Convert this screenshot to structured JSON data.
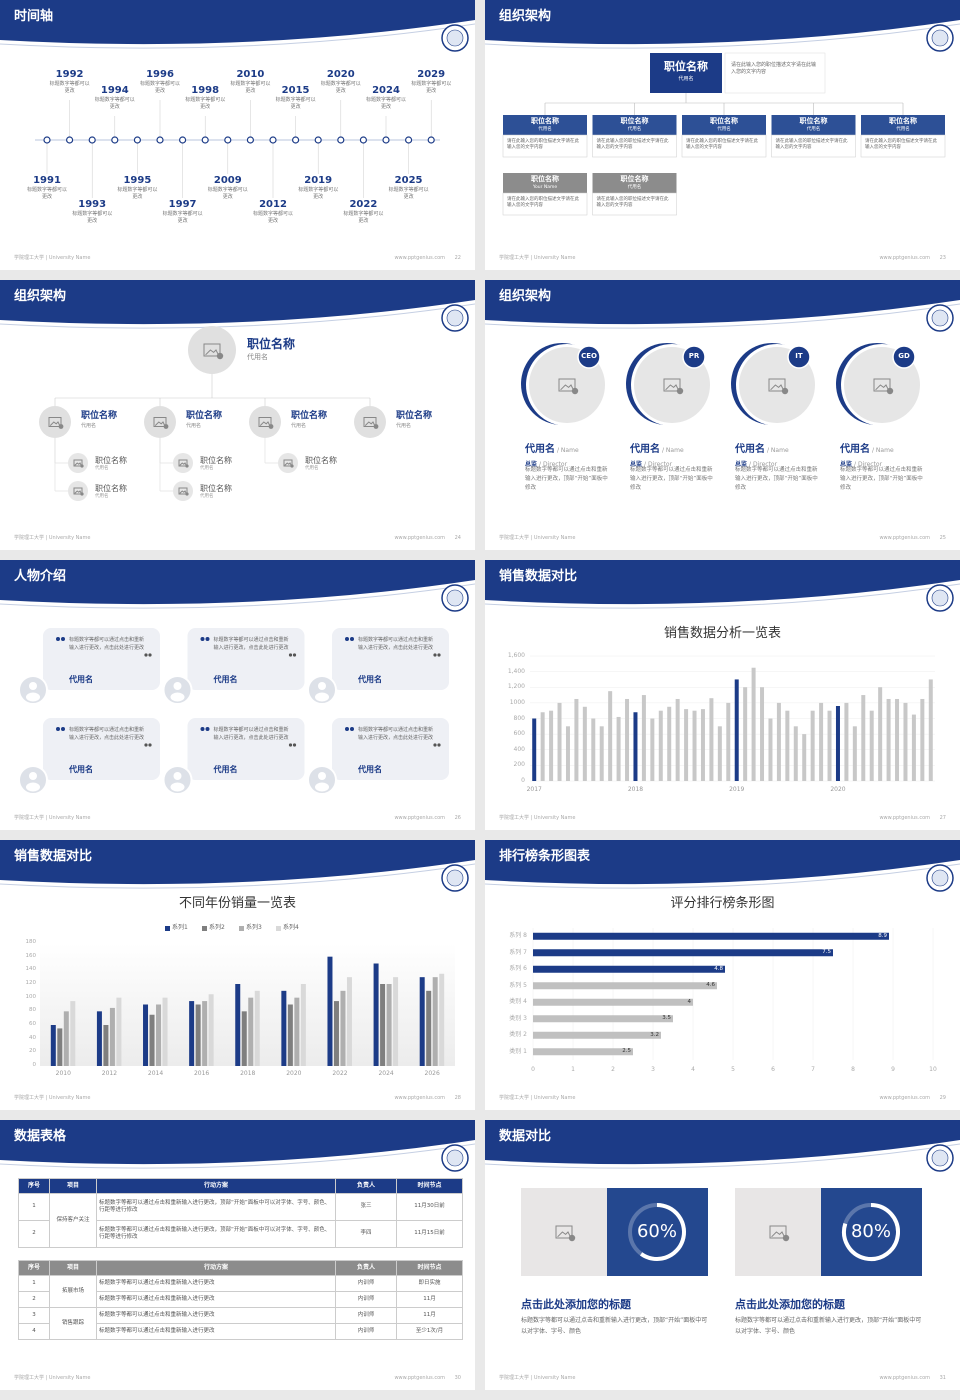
{
  "footer": {
    "school": "学院理工大学 | University Name",
    "url": "www.pptgenius.com"
  },
  "slides": [
    {
      "title": "时间轴",
      "page": "22",
      "timeline": [
        {
          "year": "1991",
          "text": "标题数字等都可以更改"
        },
        {
          "year": "1992",
          "text": "标题数字等都可以更改"
        },
        {
          "year": "1993",
          "text": "标题数字等都可以更改"
        },
        {
          "year": "1994",
          "text": "标题数字等都可以更改"
        },
        {
          "year": "1995",
          "text": "标题数字等都可以更改"
        },
        {
          "year": "1996",
          "text": "标题数字等都可以更改"
        },
        {
          "year": "1997",
          "text": "标题数字等都可以更改"
        },
        {
          "year": "1998",
          "text": "标题数字等都可以更改"
        },
        {
          "year": "2009",
          "text": "标题数字等都可以更改"
        },
        {
          "year": "2010",
          "text": "标题数字等都可以更改"
        },
        {
          "year": "2012",
          "text": "标题数字等都可以更改"
        },
        {
          "year": "2015",
          "text": "标题数字等都可以更改"
        },
        {
          "year": "2019",
          "text": "标题数字等都可以更改"
        },
        {
          "year": "2020",
          "text": "标题数字等都可以更改"
        },
        {
          "year": "2022",
          "text": "标题数字等都可以更改"
        },
        {
          "year": "2024",
          "text": "标题数字等都可以更改"
        },
        {
          "year": "2025",
          "text": "标题数字等都可以更改"
        },
        {
          "year": "2029",
          "text": "标题数字等都可以更改"
        }
      ]
    },
    {
      "title": "组织架构",
      "page": "23",
      "head": {
        "title": "职位名称",
        "sub": "代用名",
        "text": "请在此输入您的职位描述文字请在此输入您的文字内容"
      },
      "boxes": [
        {
          "title": "职位名称",
          "sub": "代用名",
          "text": "请在此输入您的职位描述文字请在此输入您的文字内容",
          "color": "#2d5096"
        },
        {
          "title": "职位名称",
          "sub": "代用名",
          "text": "请在此输入您的职位描述文字请在此输入您的文字内容",
          "color": "#2d5096"
        },
        {
          "title": "职位名称",
          "sub": "代用名",
          "text": "请在此输入您的职位描述文字请在此输入您的文字内容",
          "color": "#2d5096"
        },
        {
          "title": "职位名称",
          "sub": "代用名",
          "text": "请在此输入您的职位描述文字请在此输入您的文字内容",
          "color": "#2d5096"
        },
        {
          "title": "职位名称",
          "sub": "代用名",
          "text": "请在此输入您的职位描述文字请在此输入您的文字内容",
          "color": "#2d5096"
        },
        {
          "title": "职位名称",
          "sub": "Your Name",
          "text": "请在此输入您的职位描述文字请在此输入您的文字内容",
          "color": "#8c8c8c"
        },
        {
          "title": "职位名称",
          "sub": "代用名",
          "text": "请在此输入您的职位描述文字请在此输入您的文字内容",
          "color": "#8c8c8c"
        }
      ]
    },
    {
      "title": "组织架构",
      "page": "24",
      "head": {
        "title": "职位名称",
        "sub": "代用名"
      },
      "items": [
        {
          "title": "职位名称",
          "sub": "代用名",
          "children": [
            {
              "title": "职位名称",
              "sub": "代用名"
            },
            {
              "title": "职位名称",
              "sub": "代用名"
            }
          ]
        },
        {
          "title": "职位名称",
          "sub": "代用名",
          "children": [
            {
              "title": "职位名称",
              "sub": "代用名"
            },
            {
              "title": "职位名称",
              "sub": "代用名"
            }
          ]
        },
        {
          "title": "职位名称",
          "sub": "代用名",
          "children": [
            {
              "title": "职位名称",
              "sub": "代用名"
            }
          ]
        },
        {
          "title": "职位名称",
          "sub": "代用名",
          "children": []
        }
      ]
    },
    {
      "title": "组织架构",
      "page": "25",
      "people": [
        {
          "badge": "CEO",
          "name": "代用名",
          "name_en": "/ Name",
          "role": "总监",
          "role_en": "/ Director",
          "text": "标题数字等都可以通过点击和重新输入进行更改，顶部“开始”面板中修改"
        },
        {
          "badge": "PR",
          "name": "代用名",
          "name_en": "/ Name",
          "role": "总监",
          "role_en": "/ Director",
          "text": "标题数字等都可以通过点击和重新输入进行更改，顶部“开始”面板中修改"
        },
        {
          "badge": "IT",
          "name": "代用名",
          "name_en": "/ Name",
          "role": "总监",
          "role_en": "/ Director",
          "text": "标题数字等都可以通过点击和重新输入进行更改，顶部“开始”面板中修改"
        },
        {
          "badge": "GD",
          "name": "代用名",
          "name_en": "/ Name",
          "role": "总监",
          "role_en": "/ Director",
          "text": "标题数字等都可以通过点击和重新输入进行更改，顶部“开始”面板中修改"
        }
      ]
    },
    {
      "title": "人物介绍",
      "page": "26",
      "cards": [
        {
          "text": "标题数字等都可以通过点击和重新输入进行更改，点击此处进行更改",
          "name": "代用名"
        },
        {
          "text": "标题数字等都可以通过点击和重新输入进行更改，点击此处进行更改",
          "name": "代用名"
        },
        {
          "text": "标题数字等都可以通过点击和重新输入进行更改，点击此处进行更改",
          "name": "代用名"
        },
        {
          "text": "标题数字等都可以通过点击和重新输入进行更改，点击此处进行更改",
          "name": "代用名"
        },
        {
          "text": "标题数字等都可以通过点击和重新输入进行更改，点击此处进行更改",
          "name": "代用名"
        },
        {
          "text": "标题数字等都可以通过点击和重新输入进行更改，点击此处进行更改",
          "name": "代用名"
        }
      ]
    },
    {
      "title": "销售数据对比",
      "page": "27",
      "chart": {
        "type": "bar",
        "title": "销售数据分析一览表",
        "categories": [
          "2017",
          null,
          null,
          null,
          null,
          null,
          null,
          null,
          null,
          null,
          null,
          null,
          "2018",
          null,
          null,
          null,
          null,
          null,
          null,
          null,
          null,
          null,
          null,
          null,
          "2019",
          null,
          null,
          null,
          null,
          null,
          null,
          null,
          null,
          null,
          null,
          null,
          "2020",
          null,
          null,
          null,
          null,
          null,
          null,
          null,
          null,
          null,
          null,
          null
        ],
        "values": [
          800,
          880,
          900,
          1000,
          700,
          1050,
          950,
          800,
          700,
          1150,
          820,
          1050,
          880,
          1100,
          800,
          900,
          950,
          1050,
          920,
          900,
          920,
          1060,
          700,
          1000,
          1300,
          1200,
          1450,
          1200,
          800,
          1000,
          900,
          700,
          600,
          900,
          1000,
          900,
          960,
          1000,
          700,
          1100,
          900,
          1200,
          1050,
          1050,
          1000,
          850,
          1050,
          1300
        ],
        "color": "#c8c8c8",
        "highlight_color": "#1c3b87",
        "ylim": [
          0,
          1600
        ],
        "yticks": [
          0,
          200,
          400,
          600,
          800,
          1000,
          {
            "value": 1200,
            "label": "1,200"
          },
          {
            "value": 1400,
            "label": "1,400"
          },
          {
            "value": 1600,
            "label": "1,600"
          }
        ],
        "grid": true
      }
    },
    {
      "title": "销售数据对比",
      "page": "28",
      "chart": {
        "type": "grouped-bar",
        "title": "不同年份销量一览表",
        "categories": [
          "2010",
          "2012",
          "2014",
          "2016",
          "2018",
          "2020",
          "2022",
          "2024",
          "2026"
        ],
        "series": [
          {
            "name": "系列1",
            "color": "#1c3b87",
            "values": [
              60,
              80,
              90,
              95,
              120,
              110,
              160,
              150,
              130
            ]
          },
          {
            "name": "系列2",
            "color": "#7f7f7f",
            "values": [
              55,
              60,
              75,
              90,
              80,
              90,
              95,
              120,
              110
            ]
          },
          {
            "name": "系列3",
            "color": "#afafaf",
            "values": [
              80,
              85,
              90,
              95,
              100,
              100,
              110,
              120,
              130
            ]
          },
          {
            "name": "系列4",
            "color": "#d9d9d9",
            "values": [
              95,
              100,
              100,
              105,
              110,
              120,
              130,
              130,
              135
            ]
          }
        ],
        "ylim": [
          0,
          180
        ],
        "yticks": [
          0,
          20,
          40,
          60,
          80,
          100,
          120,
          140,
          160,
          180
        ],
        "grid": false,
        "legend": "top"
      }
    },
    {
      "title": "排行榜条形图表",
      "page": "29",
      "chart": {
        "type": "hbar",
        "title": "评分排行榜条形图",
        "categories": [
          "类别 1",
          "类别 2",
          "类别 3",
          "类别 4",
          "系列 5",
          "系列 6",
          "系列 7",
          "系列 8"
        ],
        "values": [
          2.5,
          3.2,
          3.5,
          4,
          4.6,
          4.8,
          7.5,
          8.9
        ],
        "colors": [
          "#c0c0c0",
          "#c0c0c0",
          "#c0c0c0",
          "#c0c0c0",
          "#c0c0c0",
          "#1c3b87",
          "#1c3b87",
          "#1c3b87"
        ],
        "xlim": [
          0,
          10
        ],
        "xticks": [
          0,
          1,
          2,
          3,
          4,
          5,
          6,
          7,
          8,
          9,
          10
        ],
        "grid": true
      }
    },
    {
      "title": "数据表格",
      "page": "30",
      "tables": [
        {
          "header": [
            "序号",
            "项目",
            "行动方案",
            "负责人",
            "时间节点"
          ],
          "header_color": "#1c3b87",
          "groups": [
            {
              "project": "保持客户关注",
              "rows": [
                [
                  "1",
                  "标题数字等都可以通过点击和重新输入进行更改，顶部“开始”面板中可以对字体、字号、颜色、行距等进行修改",
                  "张三",
                  "11月30日前"
                ],
                [
                  "2",
                  "标题数字等都可以通过点击和重新输入进行更改，顶部“开始”面板中可以对字体、字号、颜色、行距等进行修改",
                  "李四",
                  "11月15日前"
                ]
              ]
            }
          ]
        },
        {
          "header": [
            "序号",
            "项目",
            "行动方案",
            "负责人",
            "时间节点"
          ],
          "header_color": "#8c8c8c",
          "groups": [
            {
              "project": "拓展市场",
              "rows": [
                [
                  "1",
                  "标题数字等都可以通过点击和重新输入进行更改",
                  "内训师",
                  "即日实施"
                ],
                [
                  "2",
                  "标题数字等都可以通过点击和重新输入进行更改",
                  "内训师",
                  "11月"
                ]
              ]
            },
            {
              "project": "销售跟踪",
              "rows": [
                [
                  "3",
                  "标题数字等都可以通过点击和重新输入进行更改",
                  "内训师",
                  "11月"
                ],
                [
                  "4",
                  "标题数字等都可以通过点击和重新输入进行更改",
                  "内训师",
                  "至少1次/月"
                ]
              ]
            }
          ]
        }
      ]
    },
    {
      "title": "数据对比",
      "page": "31",
      "cards": [
        {
          "value": 60,
          "value_label": "60%",
          "title": "点击此处添加您的标题",
          "text": "标题数字等都可以通过点击和重新输入进行更改，顶部“开始”面板中可以对字体、字号、颜色"
        },
        {
          "value": 80,
          "value_label": "80%",
          "title": "点击此处添加您的标题",
          "text": "标题数字等都可以通过点击和重新输入进行更改，顶部“开始”面板中可以对字体、字号、颜色"
        }
      ]
    }
  ]
}
